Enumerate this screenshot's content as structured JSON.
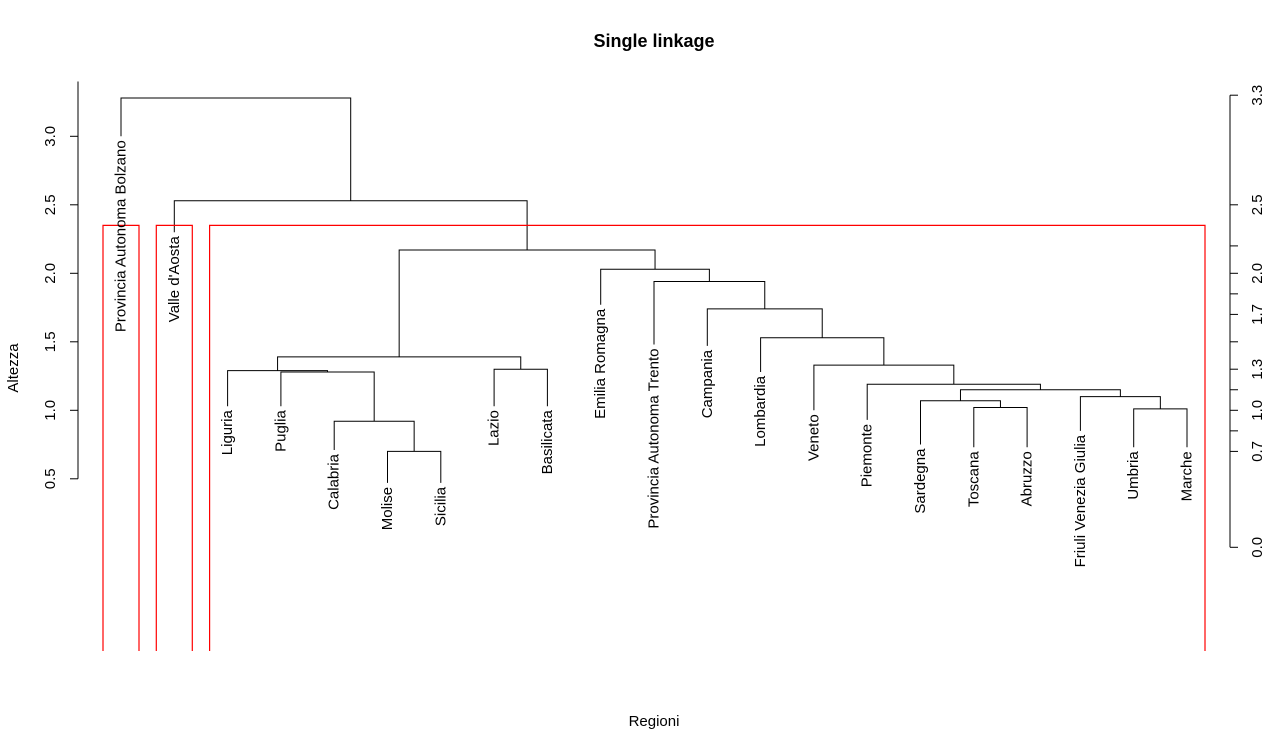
{
  "chart_data": {
    "type": "dendrogram",
    "title": "Single linkage",
    "xlabel": "Regioni",
    "ylabel": "Altezza",
    "ylim": [
      0.3,
      3.4
    ],
    "y_ticks": [
      "0.5",
      "1.0",
      "1.5",
      "2.0",
      "2.5",
      "3.0"
    ],
    "right_axis_ticks": [
      "0.0",
      "0.7",
      "1.0",
      "1.3",
      "1.7",
      "2.0",
      "2.5",
      "3.3"
    ],
    "cut_height": 2.35,
    "cut_color": "#ff0000",
    "leaves": [
      {
        "name": "Provincia Autonoma Bolzano",
        "height": 3.0
      },
      {
        "name": "Valle d'Aosta",
        "height": 2.3
      },
      {
        "name": "Liguria",
        "height": 1.03
      },
      {
        "name": "Puglia",
        "height": 1.03
      },
      {
        "name": "Calabria",
        "height": 0.71
      },
      {
        "name": "Molise",
        "height": 0.47
      },
      {
        "name": "Sicilia",
        "height": 0.47
      },
      {
        "name": "Lazio",
        "height": 1.03
      },
      {
        "name": "Basilicata",
        "height": 1.03
      },
      {
        "name": "Emilia Romagna",
        "height": 1.77
      },
      {
        "name": "Provincia Autonoma Trento",
        "height": 1.48
      },
      {
        "name": "Campania",
        "height": 1.47
      },
      {
        "name": "Lombardia",
        "height": 1.28
      },
      {
        "name": "Veneto",
        "height": 1.0
      },
      {
        "name": "Piemonte",
        "height": 0.93
      },
      {
        "name": "Sardegna",
        "height": 0.75
      },
      {
        "name": "Toscana",
        "height": 0.73
      },
      {
        "name": "Abruzzo",
        "height": 0.73
      },
      {
        "name": "Friuli Venezia Giulia",
        "height": 0.85
      },
      {
        "name": "Umbria",
        "height": 0.73
      },
      {
        "name": "Marche",
        "height": 0.73
      }
    ],
    "merges": [
      {
        "a": "L5",
        "b": "L6",
        "height": 0.7
      },
      {
        "a": "L4",
        "b": "M0",
        "height": 0.92
      },
      {
        "a": "L3",
        "b": "M1",
        "height": 1.28
      },
      {
        "a": "L2",
        "b": "M2",
        "height": 1.29
      },
      {
        "a": "L7",
        "b": "L8",
        "height": 1.3
      },
      {
        "a": "M3",
        "b": "M4",
        "height": 1.39
      },
      {
        "a": "L16",
        "b": "L17",
        "height": 1.02
      },
      {
        "a": "L15",
        "b": "M6",
        "height": 1.07
      },
      {
        "a": "L19",
        "b": "L20",
        "height": 1.01
      },
      {
        "a": "L18",
        "b": "M8",
        "height": 1.1
      },
      {
        "a": "M7",
        "b": "M9",
        "height": 1.15
      },
      {
        "a": "L14",
        "b": "M10",
        "height": 1.19
      },
      {
        "a": "L13",
        "b": "M11",
        "height": 1.33
      },
      {
        "a": "L12",
        "b": "M12",
        "height": 1.53
      },
      {
        "a": "L11",
        "b": "M13",
        "height": 1.74
      },
      {
        "a": "L10",
        "b": "M14",
        "height": 1.94
      },
      {
        "a": "L9",
        "b": "M15",
        "height": 2.03
      },
      {
        "a": "M5",
        "b": "M16",
        "height": 2.17
      },
      {
        "a": "L1",
        "b": "M17",
        "height": 2.53
      },
      {
        "a": "L0",
        "b": "M18",
        "height": 3.28
      }
    ],
    "clusters": [
      {
        "from": 0,
        "to": 0
      },
      {
        "from": 1,
        "to": 1
      },
      {
        "from": 2,
        "to": 20
      }
    ]
  }
}
